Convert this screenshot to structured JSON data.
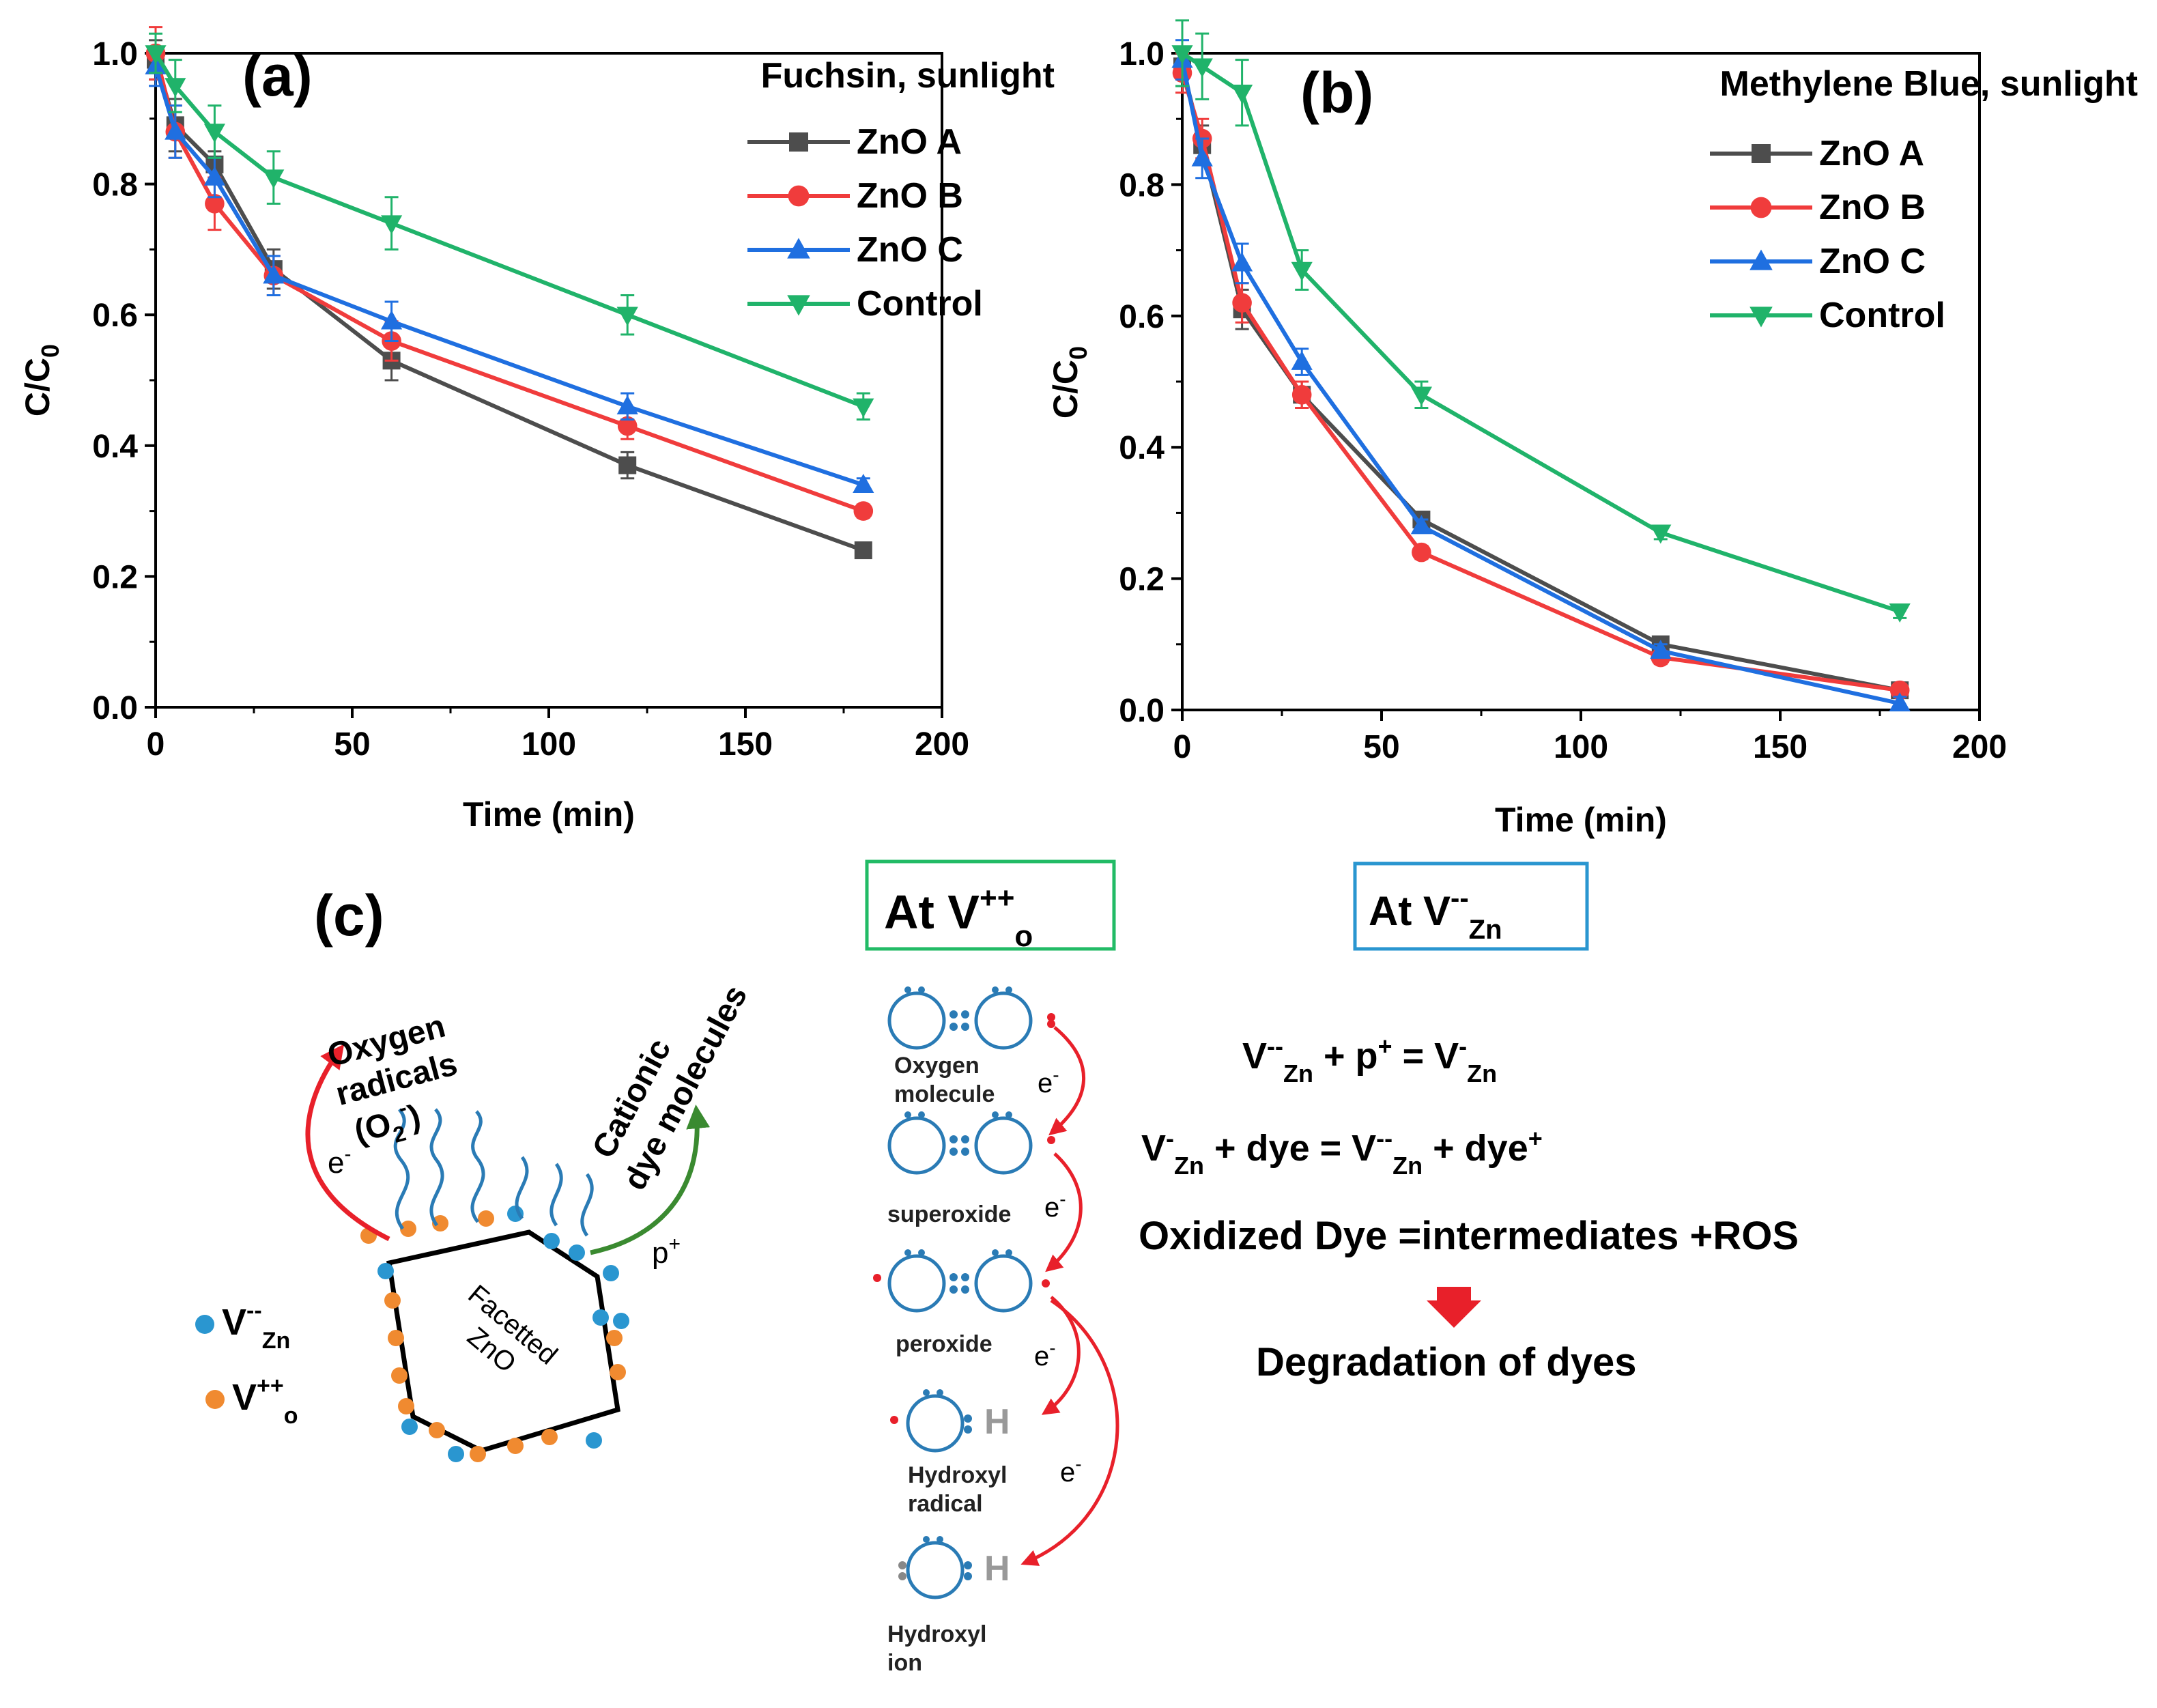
{
  "panel_c": {
    "label": "(c)",
    "oxygen_radicals": [
      "Oxygen",
      "radicals",
      "(O",
      "2",
      "-",
      ")"
    ],
    "cationic_dye": [
      "Cationic",
      "dye molecules"
    ],
    "facetted": [
      "Facetted",
      "ZnO"
    ],
    "electron_label": "e",
    "electron_sup": "-",
    "hole_label": "p",
    "hole_sup": "+",
    "legend_vzn": {
      "main": "V",
      "sup": "--",
      "sub": "Zn"
    },
    "legend_vo": {
      "main": "V",
      "sup": "++",
      "sub": "o"
    },
    "box_vo": {
      "main": "At V",
      "sup": "++",
      "sub": "o"
    },
    "box_vzn": {
      "main": "At V",
      "sup": "--",
      "sub": "Zn"
    },
    "species": [
      "Oxygen",
      "molecule",
      "superoxide",
      "peroxide",
      "Hydroxyl",
      "radical",
      "Hydroxyl",
      "ion"
    ],
    "h_label": "H",
    "eq1": {
      "a": "V",
      "a_sup": "--",
      "a_sub": "Zn",
      "b": " + p",
      "b_sup": "+",
      "c": " = V",
      "c_sup": "-",
      "c_sub": "Zn"
    },
    "eq2": {
      "a": "V",
      "a_sup": "-",
      "a_sub": "Zn",
      "b": " + dye = V",
      "b_sup": "--",
      "b_sub": "Zn",
      "c": " + dye",
      "c_sup": "+"
    },
    "eq3": "Oxidized Dye =intermediates +ROS",
    "eq4": "Degradation of dyes"
  },
  "colors": {
    "ZnO A": "#4d4d4d",
    "ZnO B": "#f03c3c",
    "ZnO C": "#1f6fe0",
    "Control": "#20b36a",
    "vzn_dot": "#2a96d0",
    "vo_dot": "#f08a30",
    "box_vo": "#22bb66",
    "box_vzn": "#2a96d0",
    "molecule": "#2a7bb5",
    "arrow_red": "#e8202a",
    "arrow_green": "#3a8a30"
  },
  "chart_data": [
    {
      "type": "line",
      "panel": "(a)",
      "title": "Fuchsin, sunlight",
      "xlabel": "Time (min)",
      "ylabel": {
        "main": "C/C",
        "sub": "0"
      },
      "xlim": [
        0,
        200
      ],
      "ylim": [
        0,
        1.0
      ],
      "xticks": [
        "0",
        "50",
        "100",
        "150",
        "200"
      ],
      "yticks": [
        "0.0",
        "0.2",
        "0.4",
        "0.6",
        "0.8",
        "1.0"
      ],
      "x": [
        0,
        5,
        15,
        30,
        60,
        120,
        180
      ],
      "series": [
        {
          "name": "ZnO A",
          "marker": "square",
          "values": [
            0.99,
            0.89,
            0.83,
            0.67,
            0.53,
            0.37,
            0.24
          ],
          "errors": [
            0.03,
            0.04,
            0.02,
            0.03,
            0.03,
            0.02,
            0.01
          ]
        },
        {
          "name": "ZnO B",
          "marker": "circle",
          "values": [
            1.0,
            0.88,
            0.77,
            0.66,
            0.56,
            0.43,
            0.3
          ],
          "errors": [
            0.04,
            0.04,
            0.04,
            0.03,
            0.03,
            0.02,
            0.01
          ]
        },
        {
          "name": "ZnO C",
          "marker": "triangle-up",
          "values": [
            0.98,
            0.88,
            0.81,
            0.66,
            0.59,
            0.46,
            0.34
          ],
          "errors": [
            0.03,
            0.04,
            0.03,
            0.03,
            0.03,
            0.02,
            0.01
          ]
        },
        {
          "name": "Control",
          "marker": "triangle-down",
          "values": [
            1.0,
            0.95,
            0.88,
            0.81,
            0.74,
            0.6,
            0.46
          ],
          "errors": [
            0.03,
            0.04,
            0.04,
            0.04,
            0.04,
            0.03,
            0.02
          ]
        }
      ]
    },
    {
      "type": "line",
      "panel": "(b)",
      "title": "Methylene Blue, sunlight",
      "xlabel": "Time (min)",
      "ylabel": {
        "main": "C/C",
        "sub": "0"
      },
      "xlim": [
        0,
        200
      ],
      "ylim": [
        0,
        1.0
      ],
      "xticks": [
        "0",
        "50",
        "100",
        "150",
        "200"
      ],
      "yticks": [
        "0.0",
        "0.2",
        "0.4",
        "0.6",
        "0.8",
        "1.0"
      ],
      "x": [
        0,
        5,
        15,
        30,
        60,
        120,
        180
      ],
      "series": [
        {
          "name": "ZnO A",
          "marker": "square",
          "values": [
            0.98,
            0.86,
            0.61,
            0.48,
            0.29,
            0.1,
            0.03
          ],
          "errors": [
            0.03,
            0.03,
            0.03,
            0.02,
            0.01,
            0.01,
            0.01
          ]
        },
        {
          "name": "ZnO B",
          "marker": "circle",
          "values": [
            0.97,
            0.87,
            0.62,
            0.48,
            0.24,
            0.08,
            0.03
          ],
          "errors": [
            0.03,
            0.03,
            0.03,
            0.02,
            0.01,
            0.01,
            0.01
          ]
        },
        {
          "name": "ZnO C",
          "marker": "triangle-up",
          "values": [
            0.99,
            0.84,
            0.68,
            0.53,
            0.28,
            0.09,
            0.01
          ],
          "errors": [
            0.03,
            0.03,
            0.03,
            0.02,
            0.01,
            0.01,
            0.01
          ]
        },
        {
          "name": "Control",
          "marker": "triangle-down",
          "values": [
            1.0,
            0.98,
            0.94,
            0.67,
            0.48,
            0.27,
            0.15
          ],
          "errors": [
            0.05,
            0.05,
            0.05,
            0.03,
            0.02,
            0.01,
            0.01
          ]
        }
      ]
    }
  ]
}
